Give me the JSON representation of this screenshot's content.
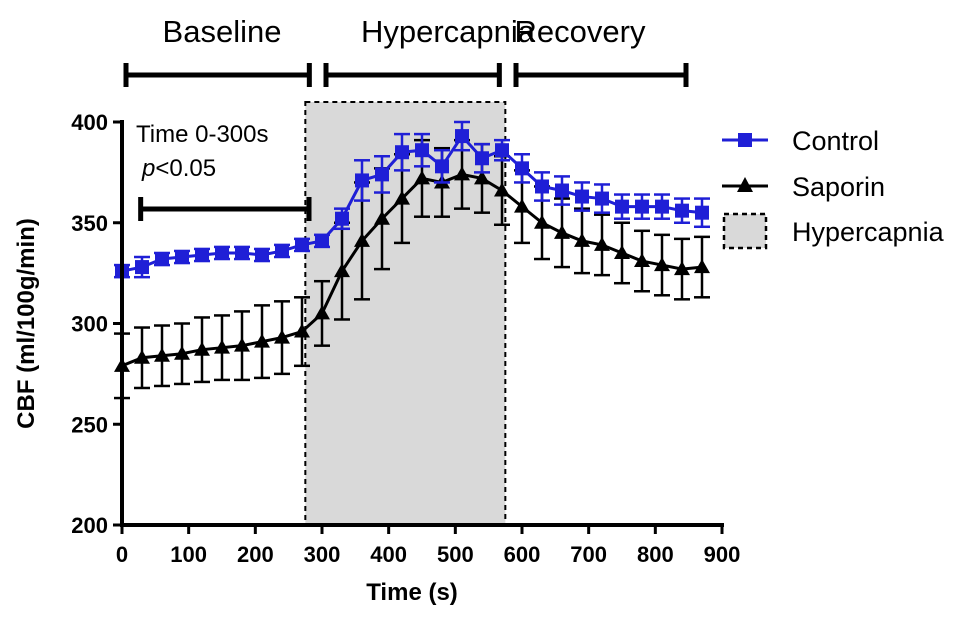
{
  "chart_data": {
    "type": "line",
    "xlabel": "Time (s)",
    "ylabel": "CBF (ml/100g/min)",
    "xlim": [
      0,
      900
    ],
    "ylim": [
      200,
      400
    ],
    "xticks": [
      "0",
      "100",
      "200",
      "300",
      "400",
      "500",
      "600",
      "700",
      "800",
      "900"
    ],
    "yticks": [
      "200",
      "250",
      "300",
      "350",
      "400"
    ],
    "grid": false,
    "legend_placement": "right",
    "x": [
      0,
      30,
      60,
      90,
      120,
      150,
      180,
      210,
      240,
      270,
      300,
      330,
      360,
      390,
      420,
      450,
      480,
      510,
      540,
      570,
      600,
      630,
      660,
      690,
      720,
      750,
      780,
      810,
      840,
      870
    ],
    "series": [
      {
        "name": "Control",
        "color": "#1f1fd6",
        "marker": "square",
        "values": [
          326,
          328,
          332,
          333,
          334,
          335,
          335,
          334,
          336,
          339,
          341,
          352,
          371,
          374,
          385,
          386,
          378,
          393,
          382,
          386,
          377,
          368,
          366,
          363,
          362,
          358,
          358,
          358,
          356,
          355
        ],
        "errors": [
          3,
          5,
          3,
          3,
          3,
          3,
          3,
          3,
          3,
          3,
          3,
          5,
          10,
          9,
          9,
          8,
          8,
          7,
          7,
          5,
          7,
          7,
          7,
          7,
          7,
          6,
          6,
          6,
          6,
          7
        ]
      },
      {
        "name": "Saporin",
        "color": "#000000",
        "marker": "triangle",
        "values": [
          279,
          283,
          284,
          285,
          287,
          288,
          289,
          291,
          293,
          296,
          305,
          326,
          341,
          352,
          362,
          372,
          370,
          374,
          372,
          366,
          358,
          350,
          345,
          341,
          339,
          335,
          331,
          329,
          327,
          328
        ],
        "errors": [
          16,
          15,
          15,
          15,
          16,
          16,
          17,
          18,
          18,
          17,
          16,
          24,
          29,
          25,
          22,
          19,
          17,
          17,
          17,
          17,
          18,
          18,
          17,
          16,
          15,
          15,
          15,
          15,
          15,
          15
        ]
      }
    ],
    "shaded_region": {
      "name": "Hypercapnia",
      "x_start": 275,
      "x_end": 575,
      "color": "#d9d9d9"
    },
    "phases": [
      {
        "label": "Baseline",
        "x_start": 0,
        "x_end": 275
      },
      {
        "label": "Hypercapnia",
        "x_start": 300,
        "x_end": 560
      },
      {
        "label": "Recovery",
        "x_start": 585,
        "x_end": 840
      }
    ],
    "annotation": {
      "line1": "Time 0-300s",
      "p_symbol": "p",
      "p_rest": "<0.05",
      "bracket_x_start": 10,
      "bracket_x_end": 285
    }
  }
}
